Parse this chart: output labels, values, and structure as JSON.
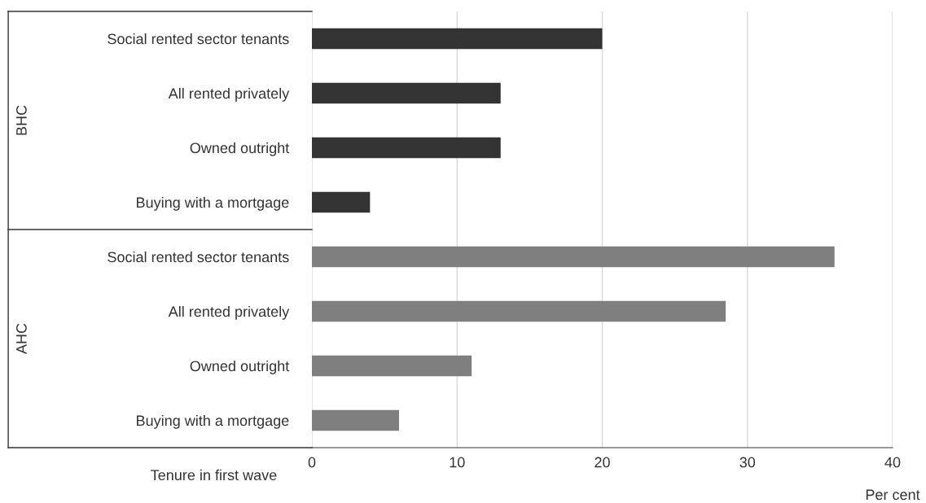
{
  "chart_data": {
    "type": "bar",
    "orientation": "horizontal",
    "categories": [
      "Social rented sector tenants",
      "All rented privately",
      "Owned outright",
      "Buying with a mortgage",
      "Social rented sector tenants",
      "All rented privately",
      "Owned outright",
      "Buying with a mortgage"
    ],
    "values": [
      20,
      13,
      13,
      4,
      36,
      28.5,
      11,
      6
    ],
    "colors": [
      "#333333",
      "#333333",
      "#333333",
      "#333333",
      "#7f7f7f",
      "#7f7f7f",
      "#7f7f7f",
      "#7f7f7f"
    ],
    "annotations": [
      "BHC",
      "AHC"
    ],
    "ylabel": "Tenure in first wave",
    "xlabel": "Per cent",
    "xlim": [
      0,
      40
    ],
    "xticks": [
      0,
      10,
      20,
      30,
      40
    ],
    "grid": "x"
  }
}
